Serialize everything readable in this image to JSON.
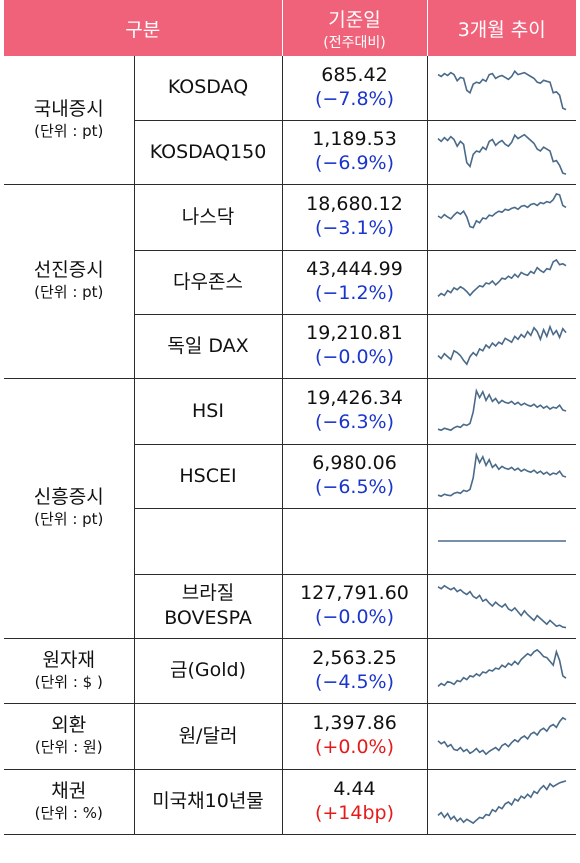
{
  "header": {
    "col1": "구분",
    "col2_main": "기준일",
    "col2_sub": "(전주대비)",
    "col3": "3개월 추이"
  },
  "colors": {
    "header_bg": "#f0627a",
    "negative": "#1a35cc",
    "positive": "#e51b1b",
    "sparkline": "#4a6a8a"
  },
  "groups": [
    {
      "name": "국내증시",
      "unit": "(단위 : pt)"
    },
    {
      "name": "선진증시",
      "unit": "(단위 : pt)"
    },
    {
      "name": "신흥증시",
      "unit": "(단위 : pt)"
    },
    {
      "name": "원자재",
      "unit": "(단위 : $ )"
    },
    {
      "name": "외환",
      "unit": "(단위 : 원)"
    },
    {
      "name": "채권",
      "unit": "(단위 : %)"
    }
  ],
  "rows": [
    {
      "item": "KOSDAQ",
      "value": "685.42",
      "change": "(−7.8%)",
      "dir": "neg",
      "trend": [
        0.78,
        0.74,
        0.8,
        0.76,
        0.82,
        0.78,
        0.65,
        0.72,
        0.7,
        0.45,
        0.4,
        0.58,
        0.62,
        0.6,
        0.68,
        0.64,
        0.78,
        0.8,
        0.7,
        0.74,
        0.76,
        0.72,
        0.68,
        0.74,
        0.85,
        0.78,
        0.8,
        0.82,
        0.78,
        0.74,
        0.7,
        0.62,
        0.6,
        0.66,
        0.64,
        0.62,
        0.4,
        0.42,
        0.35,
        0.08,
        0.05
      ]
    },
    {
      "item": "KOSDAQ150",
      "value": "1,189.53",
      "change": "(−6.9%)",
      "dir": "neg",
      "trend": [
        0.78,
        0.72,
        0.8,
        0.74,
        0.82,
        0.76,
        0.62,
        0.72,
        0.66,
        0.28,
        0.2,
        0.45,
        0.52,
        0.5,
        0.6,
        0.55,
        0.72,
        0.76,
        0.64,
        0.7,
        0.74,
        0.66,
        0.62,
        0.7,
        0.85,
        0.78,
        0.82,
        0.86,
        0.8,
        0.74,
        0.68,
        0.56,
        0.52,
        0.6,
        0.56,
        0.52,
        0.3,
        0.32,
        0.22,
        0.06,
        0.04
      ]
    },
    {
      "item": "나스닥",
      "value": "18,680.12",
      "change": "(−3.1%)",
      "dir": "neg",
      "trend": [
        0.52,
        0.48,
        0.55,
        0.5,
        0.46,
        0.54,
        0.6,
        0.56,
        0.62,
        0.5,
        0.3,
        0.28,
        0.42,
        0.38,
        0.48,
        0.46,
        0.54,
        0.52,
        0.58,
        0.62,
        0.6,
        0.66,
        0.64,
        0.68,
        0.7,
        0.66,
        0.72,
        0.74,
        0.7,
        0.76,
        0.78,
        0.74,
        0.8,
        0.78,
        0.82,
        0.8,
        0.86,
        0.98,
        0.96,
        0.74,
        0.7
      ]
    },
    {
      "item": "다우존스",
      "value": "43,444.99",
      "change": "(−1.2%)",
      "dir": "neg",
      "trend": [
        0.2,
        0.26,
        0.22,
        0.32,
        0.28,
        0.38,
        0.34,
        0.4,
        0.36,
        0.3,
        0.22,
        0.3,
        0.36,
        0.42,
        0.4,
        0.48,
        0.46,
        0.52,
        0.44,
        0.5,
        0.58,
        0.56,
        0.62,
        0.58,
        0.66,
        0.6,
        0.7,
        0.66,
        0.64,
        0.72,
        0.68,
        0.8,
        0.74,
        0.7,
        0.78,
        0.76,
        0.92,
        0.96,
        0.86,
        0.88,
        0.84
      ]
    },
    {
      "item": "독일 DAX",
      "value": "19,210.81",
      "change": "(−0.0%)",
      "dir": "neg",
      "trend": [
        0.3,
        0.24,
        0.34,
        0.28,
        0.22,
        0.4,
        0.36,
        0.3,
        0.2,
        0.12,
        0.28,
        0.36,
        0.3,
        0.44,
        0.4,
        0.52,
        0.46,
        0.56,
        0.5,
        0.58,
        0.54,
        0.66,
        0.62,
        0.58,
        0.7,
        0.64,
        0.74,
        0.68,
        0.8,
        0.72,
        0.88,
        0.8,
        0.64,
        0.84,
        0.7,
        0.9,
        0.74,
        0.82,
        0.68,
        0.86,
        0.78
      ]
    },
    {
      "item": "HSI",
      "value": "19,426.34",
      "change": "(−6.3%)",
      "dir": "neg",
      "trend": [
        0.12,
        0.1,
        0.14,
        0.12,
        0.1,
        0.15,
        0.18,
        0.16,
        0.22,
        0.2,
        0.24,
        0.48,
        0.92,
        0.78,
        0.9,
        0.72,
        0.84,
        0.7,
        0.76,
        0.66,
        0.72,
        0.68,
        0.66,
        0.7,
        0.64,
        0.68,
        0.62,
        0.66,
        0.62,
        0.6,
        0.64,
        0.58,
        0.62,
        0.56,
        0.6,
        0.54,
        0.58,
        0.56,
        0.62,
        0.52,
        0.5
      ]
    },
    {
      "item": "HSCEI",
      "value": "6,980.06",
      "change": "(−6.5%)",
      "dir": "neg",
      "trend": [
        0.1,
        0.08,
        0.12,
        0.1,
        0.09,
        0.14,
        0.16,
        0.14,
        0.2,
        0.18,
        0.22,
        0.46,
        0.94,
        0.78,
        0.9,
        0.72,
        0.84,
        0.68,
        0.74,
        0.64,
        0.7,
        0.66,
        0.64,
        0.68,
        0.62,
        0.66,
        0.6,
        0.64,
        0.6,
        0.58,
        0.62,
        0.56,
        0.6,
        0.54,
        0.58,
        0.52,
        0.56,
        0.54,
        0.6,
        0.5,
        0.48
      ]
    },
    {
      "item": "",
      "value": "",
      "change": "",
      "dir": "neg",
      "trend": [
        0.5,
        0.5
      ]
    },
    {
      "item": "브라질\nBOVESPA",
      "value": "127,791.60",
      "change": "(−0.0%)",
      "dir": "neg",
      "trend": [
        0.9,
        0.86,
        0.92,
        0.88,
        0.84,
        0.88,
        0.8,
        0.84,
        0.78,
        0.74,
        0.8,
        0.7,
        0.66,
        0.72,
        0.6,
        0.64,
        0.56,
        0.5,
        0.58,
        0.52,
        0.48,
        0.54,
        0.44,
        0.4,
        0.46,
        0.38,
        0.3,
        0.4,
        0.32,
        0.26,
        0.2,
        0.3,
        0.24,
        0.18,
        0.12,
        0.2,
        0.14,
        0.08,
        0.1,
        0.06,
        0.05
      ]
    },
    {
      "item": "금(Gold)",
      "value": "2,563.25",
      "change": "(−4.5%)",
      "dir": "neg",
      "trend": [
        0.18,
        0.24,
        0.2,
        0.28,
        0.26,
        0.22,
        0.3,
        0.28,
        0.36,
        0.32,
        0.4,
        0.38,
        0.44,
        0.4,
        0.48,
        0.46,
        0.52,
        0.5,
        0.56,
        0.54,
        0.62,
        0.58,
        0.66,
        0.62,
        0.7,
        0.64,
        0.74,
        0.8,
        0.86,
        0.82,
        0.9,
        0.94,
        0.88,
        0.8,
        0.78,
        0.7,
        0.62,
        0.9,
        0.72,
        0.4,
        0.35
      ]
    },
    {
      "item": "원/달러",
      "value": "1,397.86",
      "change": "(+0.0%)",
      "dir": "pos",
      "trend": [
        0.4,
        0.34,
        0.38,
        0.28,
        0.32,
        0.22,
        0.2,
        0.26,
        0.18,
        0.22,
        0.14,
        0.18,
        0.24,
        0.16,
        0.2,
        0.12,
        0.18,
        0.22,
        0.26,
        0.2,
        0.3,
        0.34,
        0.28,
        0.36,
        0.42,
        0.38,
        0.46,
        0.5,
        0.44,
        0.54,
        0.58,
        0.52,
        0.62,
        0.66,
        0.6,
        0.7,
        0.74,
        0.68,
        0.8,
        0.88,
        0.84
      ]
    },
    {
      "item": "미국채10년물",
      "value": "4.44",
      "change": "(+14bp)",
      "dir": "pos",
      "trend": [
        0.22,
        0.28,
        0.18,
        0.26,
        0.14,
        0.2,
        0.1,
        0.16,
        0.08,
        0.14,
        0.1,
        0.06,
        0.12,
        0.18,
        0.16,
        0.24,
        0.22,
        0.34,
        0.3,
        0.4,
        0.36,
        0.46,
        0.5,
        0.44,
        0.56,
        0.52,
        0.62,
        0.58,
        0.66,
        0.6,
        0.72,
        0.68,
        0.78,
        0.84,
        0.76,
        0.88,
        0.82,
        0.86,
        0.9,
        0.92,
        0.94
      ]
    }
  ]
}
